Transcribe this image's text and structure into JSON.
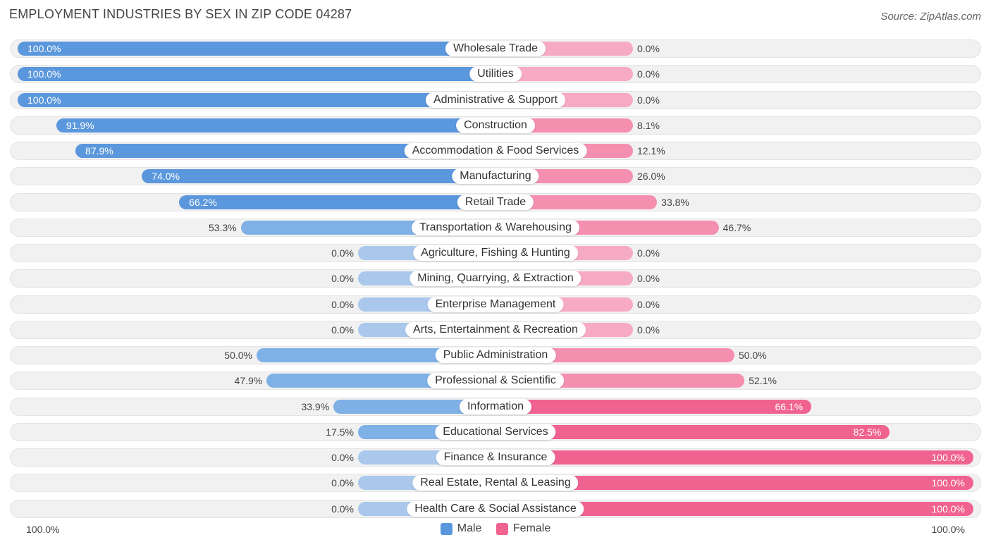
{
  "title": "EMPLOYMENT INDUSTRIES BY SEX IN ZIP CODE 04287",
  "source": "Source: ZipAtlas.com",
  "colors": {
    "male_strong": "#5b97dc",
    "male_light": "#a9c8ec",
    "female_strong": "#f0628f",
    "female_light": "#f7aac3"
  },
  "chart_data": {
    "type": "bar",
    "orientation": "horizontal-diverging",
    "title": "EMPLOYMENT INDUSTRIES BY SEX IN ZIP CODE 04287",
    "categories": [
      "Wholesale Trade",
      "Utilities",
      "Administrative & Support",
      "Construction",
      "Accommodation & Food Services",
      "Manufacturing",
      "Retail Trade",
      "Transportation & Warehousing",
      "Agriculture, Fishing & Hunting",
      "Mining, Quarrying, & Extraction",
      "Enterprise Management",
      "Arts, Entertainment & Recreation",
      "Public Administration",
      "Professional & Scientific",
      "Information",
      "Educational Services",
      "Finance & Insurance",
      "Real Estate, Rental & Leasing",
      "Health Care & Social Assistance"
    ],
    "series": [
      {
        "name": "Male",
        "values": [
          100.0,
          100.0,
          100.0,
          91.9,
          87.9,
          74.0,
          66.2,
          53.3,
          0.0,
          0.0,
          0.0,
          0.0,
          50.0,
          47.9,
          33.9,
          17.5,
          0.0,
          0.0,
          0.0
        ],
        "labels": [
          "100.0%",
          "100.0%",
          "100.0%",
          "91.9%",
          "87.9%",
          "74.0%",
          "66.2%",
          "53.3%",
          "0.0%",
          "0.0%",
          "0.0%",
          "0.0%",
          "50.0%",
          "47.9%",
          "33.9%",
          "17.5%",
          "0.0%",
          "0.0%",
          "0.0%"
        ]
      },
      {
        "name": "Female",
        "values": [
          0.0,
          0.0,
          0.0,
          8.1,
          12.1,
          26.0,
          33.8,
          46.7,
          0.0,
          0.0,
          0.0,
          0.0,
          50.0,
          52.1,
          66.1,
          82.5,
          100.0,
          100.0,
          100.0
        ],
        "labels": [
          "0.0%",
          "0.0%",
          "0.0%",
          "8.1%",
          "12.1%",
          "26.0%",
          "33.8%",
          "46.7%",
          "0.0%",
          "0.0%",
          "0.0%",
          "0.0%",
          "50.0%",
          "52.1%",
          "66.1%",
          "82.5%",
          "100.0%",
          "100.0%",
          "100.0%"
        ]
      }
    ],
    "xlim": [
      -100,
      100
    ],
    "axis_left_label": "100.0%",
    "axis_right_label": "100.0%",
    "legend": [
      "Male",
      "Female"
    ],
    "legend_position": "bottom-center"
  }
}
